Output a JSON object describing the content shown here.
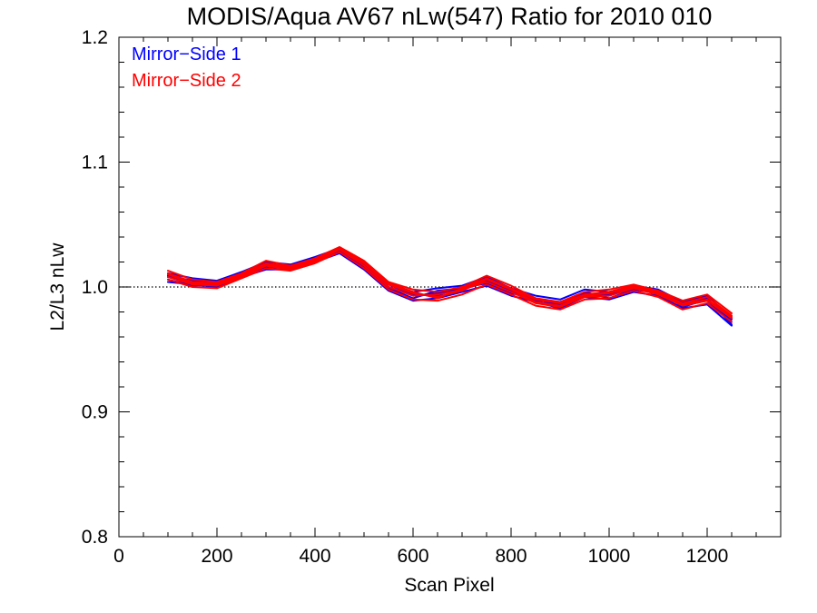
{
  "chart_data": {
    "type": "line",
    "title": "MODIS/Aqua AV67 nLw(547) Ratio for 2010 010",
    "xlabel": "Scan Pixel",
    "ylabel": "L2/L3 nLw",
    "xlim": [
      0,
      1350
    ],
    "ylim": [
      0.8,
      1.2
    ],
    "xticks": [
      0,
      200,
      400,
      600,
      800,
      1000,
      1200
    ],
    "xtick_labels": [
      "0",
      "200",
      "400",
      "600",
      "800",
      "1000",
      "1200"
    ],
    "yticks": [
      0.8,
      0.9,
      1.0,
      1.1,
      1.2
    ],
    "ytick_labels": [
      "0.8",
      "0.9",
      "1.0",
      "1.1",
      "1.2"
    ],
    "reference_line": {
      "y": 1.0,
      "style": "dotted",
      "color": "#000000"
    },
    "legend_placement": "top-left",
    "legend": [
      {
        "label": "Mirror−Side 1",
        "color": "#0000ff"
      },
      {
        "label": "Mirror−Side 2",
        "color": "#ff0000"
      }
    ],
    "x": [
      100,
      150,
      200,
      250,
      300,
      350,
      400,
      450,
      500,
      550,
      600,
      650,
      700,
      750,
      800,
      850,
      900,
      950,
      1000,
      1050,
      1100,
      1150,
      1200,
      1250
    ],
    "series": [
      {
        "color": "#0000ff",
        "values": [
          1.008,
          1.004,
          1.003,
          1.01,
          1.017,
          1.016,
          1.022,
          1.03,
          1.018,
          1.0,
          0.993,
          0.995,
          0.998,
          1.005,
          0.996,
          0.99,
          0.986,
          0.995,
          0.993,
          0.999,
          0.996,
          0.985,
          0.989,
          0.972
        ]
      },
      {
        "color": "#0000ff",
        "values": [
          1.004,
          1.002,
          1.0,
          1.008,
          1.014,
          1.014,
          1.02,
          1.027,
          1.014,
          0.997,
          0.989,
          0.991,
          0.996,
          1.001,
          0.993,
          0.988,
          0.983,
          0.992,
          0.99,
          0.996,
          0.993,
          0.983,
          0.986,
          0.969
        ]
      },
      {
        "color": "#0000ff",
        "values": [
          1.011,
          1.007,
          1.005,
          1.012,
          1.02,
          1.018,
          1.024,
          1.031,
          1.02,
          1.003,
          0.996,
          0.999,
          1.001,
          1.008,
          0.999,
          0.993,
          0.99,
          0.998,
          0.996,
          1.001,
          0.998,
          0.988,
          0.993,
          0.975
        ]
      },
      {
        "color": "#0000ff",
        "values": [
          1.006,
          1.001,
          1.002,
          1.009,
          1.016,
          1.015,
          1.021,
          1.028,
          1.016,
          0.999,
          0.991,
          0.997,
          0.999,
          1.003,
          0.995,
          0.991,
          0.984,
          0.996,
          0.991,
          0.998,
          0.995,
          0.986,
          0.991,
          0.97
        ]
      },
      {
        "color": "#0000ff",
        "values": [
          1.009,
          1.005,
          1.004,
          1.011,
          1.018,
          1.017,
          1.023,
          1.029,
          1.019,
          1.002,
          0.994,
          0.993,
          1.0,
          1.006,
          0.997,
          0.989,
          0.988,
          0.994,
          0.994,
          1.0,
          0.997,
          0.984,
          0.99,
          0.974
        ]
      },
      {
        "color": "#ff0000",
        "values": [
          1.01,
          1.003,
          1.002,
          1.009,
          1.018,
          1.015,
          1.021,
          1.031,
          1.019,
          1.002,
          0.995,
          0.992,
          0.997,
          1.006,
          0.998,
          0.988,
          0.985,
          0.993,
          0.995,
          1.0,
          0.995,
          0.986,
          0.99,
          0.976
        ]
      },
      {
        "color": "#ff0000",
        "values": [
          1.006,
          1.0,
          0.999,
          1.007,
          1.015,
          1.013,
          1.019,
          1.028,
          1.015,
          0.998,
          0.99,
          0.989,
          0.994,
          1.002,
          0.994,
          0.985,
          0.982,
          0.99,
          0.991,
          0.997,
          0.992,
          0.982,
          0.987,
          0.972
        ]
      },
      {
        "color": "#ff0000",
        "values": [
          1.013,
          1.006,
          1.004,
          1.011,
          1.021,
          1.017,
          1.023,
          1.032,
          1.021,
          1.004,
          0.998,
          0.996,
          1.0,
          1.009,
          1.001,
          0.991,
          0.988,
          0.996,
          0.998,
          1.002,
          0.997,
          0.989,
          0.994,
          0.979
        ]
      },
      {
        "color": "#ff0000",
        "values": [
          1.008,
          1.002,
          1.001,
          1.008,
          1.017,
          1.014,
          1.02,
          1.03,
          1.017,
          1.0,
          0.993,
          0.994,
          0.998,
          1.004,
          0.996,
          0.987,
          0.984,
          0.992,
          0.993,
          0.999,
          0.994,
          0.985,
          0.989,
          0.975
        ]
      },
      {
        "color": "#ff0000",
        "values": [
          1.011,
          1.004,
          1.003,
          1.01,
          1.019,
          1.016,
          1.022,
          1.031,
          1.02,
          1.003,
          0.996,
          0.991,
          0.999,
          1.007,
          0.999,
          0.99,
          0.987,
          0.994,
          0.996,
          1.001,
          0.996,
          0.987,
          0.992,
          0.977
        ]
      }
    ]
  }
}
